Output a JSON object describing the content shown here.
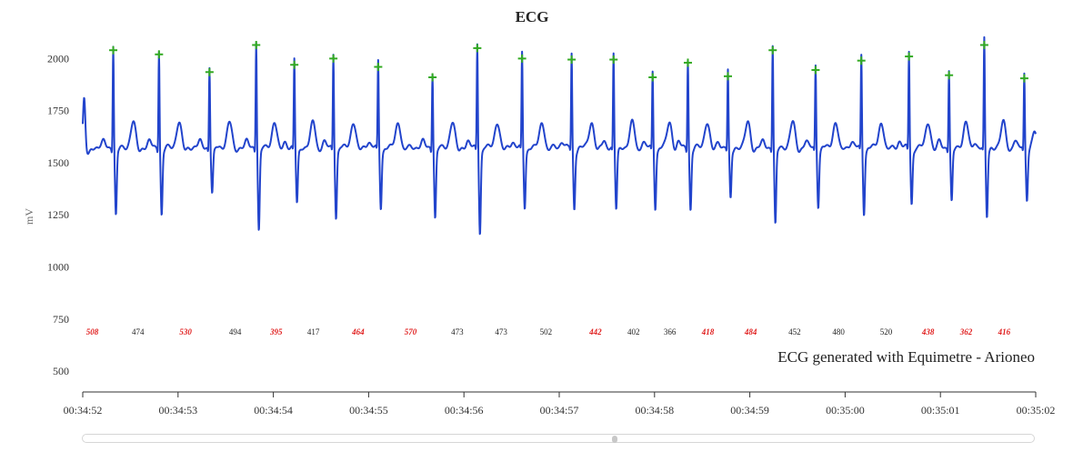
{
  "chart_data": {
    "type": "line",
    "title": "ECG",
    "ylabel": "mV",
    "ylim": [
      400,
      2150
    ],
    "y_ticks": [
      500,
      750,
      1000,
      1250,
      1500,
      1750,
      2000
    ],
    "x_ticks": [
      "00:34:52",
      "00:34:53",
      "00:34:54",
      "00:34:55",
      "00:34:56",
      "00:34:57",
      "00:34:58",
      "00:34:59",
      "00:35:00",
      "00:35:01",
      "00:35:02"
    ],
    "xlim_seconds_within_window": [
      0,
      10
    ],
    "baseline_mV": 1575,
    "series": [
      {
        "type": "line",
        "color": "#2244cc",
        "peaks": [
          {
            "t": 0.32,
            "value": 2040
          },
          {
            "t": 0.8,
            "value": 2020
          },
          {
            "t": 1.33,
            "value": 1935
          },
          {
            "t": 1.82,
            "value": 2065
          },
          {
            "t": 2.22,
            "value": 1970
          },
          {
            "t": 2.63,
            "value": 2000
          },
          {
            "t": 3.1,
            "value": 1960
          },
          {
            "t": 3.67,
            "value": 1910
          },
          {
            "t": 4.14,
            "value": 2050
          },
          {
            "t": 4.61,
            "value": 2000
          },
          {
            "t": 5.13,
            "value": 1995
          },
          {
            "t": 5.57,
            "value": 1995
          },
          {
            "t": 5.98,
            "value": 1910
          },
          {
            "t": 6.35,
            "value": 1980
          },
          {
            "t": 6.77,
            "value": 1915
          },
          {
            "t": 7.24,
            "value": 2040
          },
          {
            "t": 7.69,
            "value": 1945
          },
          {
            "t": 8.17,
            "value": 1990
          },
          {
            "t": 8.67,
            "value": 2010
          },
          {
            "t": 9.09,
            "value": 1920
          },
          {
            "t": 9.46,
            "value": 2065
          },
          {
            "t": 9.88,
            "value": 1905
          }
        ],
        "troughs": [
          1245,
          1250,
          1355,
          1175,
          1305,
          1240,
          1285,
          1235,
          1165,
          1285,
          1280,
          1275,
          1285,
          1275,
          1325,
          1200,
          1295,
          1260,
          1305,
          1310,
          1235,
          1330
        ]
      }
    ],
    "peak_marker": {
      "symbol": "+",
      "color": "#33aa22"
    },
    "rr_intervals": [
      {
        "value": "508",
        "alert": true
      },
      {
        "value": "474",
        "alert": false
      },
      {
        "value": "530",
        "alert": true
      },
      {
        "value": "494",
        "alert": false
      },
      {
        "value": "395",
        "alert": true
      },
      {
        "value": "417",
        "alert": false
      },
      {
        "value": "464",
        "alert": true
      },
      {
        "value": "570",
        "alert": true
      },
      {
        "value": "473",
        "alert": false
      },
      {
        "value": "473",
        "alert": false
      },
      {
        "value": "502",
        "alert": false
      },
      {
        "value": "442",
        "alert": true
      },
      {
        "value": "402",
        "alert": false
      },
      {
        "value": "366",
        "alert": false
      },
      {
        "value": "418",
        "alert": true
      },
      {
        "value": "484",
        "alert": true
      },
      {
        "value": "452",
        "alert": false
      },
      {
        "value": "480",
        "alert": false
      },
      {
        "value": "520",
        "alert": false
      },
      {
        "value": "438",
        "alert": true
      },
      {
        "value": "362",
        "alert": true
      },
      {
        "value": "416",
        "alert": true
      }
    ],
    "rr_label_times": [
      0.1,
      0.58,
      1.08,
      1.6,
      2.03,
      2.42,
      2.89,
      3.44,
      3.93,
      4.39,
      4.86,
      5.38,
      5.78,
      6.16,
      6.56,
      7.01,
      7.47,
      7.93,
      8.43,
      8.87,
      9.27,
      9.67
    ],
    "annotation": "ECG generated with Equimetre - Arioneo",
    "grid": false,
    "legend": "none"
  },
  "colors": {
    "signal": "#2244cc",
    "peak_marker": "#33aa22",
    "rr_alert": "#e02020",
    "rr_normal": "#222222",
    "axis": "#333333"
  },
  "scrollbar": {
    "position_fraction": 0.56
  }
}
